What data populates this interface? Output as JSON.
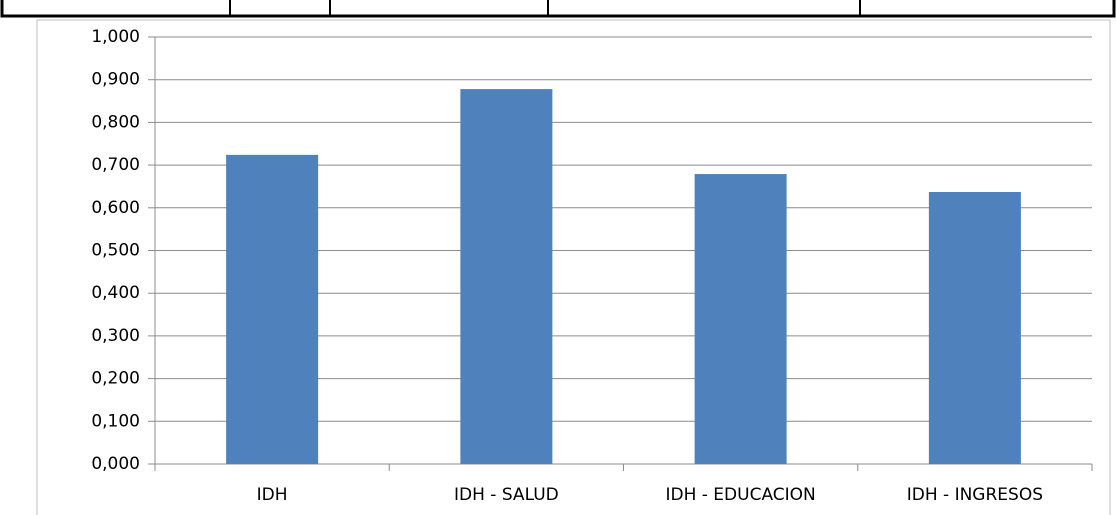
{
  "chart_data": {
    "type": "bar",
    "categories": [
      "IDH",
      "IDH - SALUD",
      "IDH - EDUCACION",
      "IDH - INGRESOS"
    ],
    "values": [
      0.724,
      0.878,
      0.679,
      0.637
    ],
    "color": "#4f81bd",
    "ylim": [
      0,
      1
    ],
    "yticks": [
      {
        "value": 0,
        "label": "0,000"
      },
      {
        "value": 0.1,
        "label": "0,100"
      },
      {
        "value": 0.2,
        "label": "0,200"
      },
      {
        "value": 0.3,
        "label": "0,300"
      },
      {
        "value": 0.4,
        "label": "0,400"
      },
      {
        "value": 0.5,
        "label": "0,500"
      },
      {
        "value": 0.6,
        "label": "0,600"
      },
      {
        "value": 0.7,
        "label": "0,700"
      },
      {
        "value": 0.8,
        "label": "0,800"
      },
      {
        "value": 0.9,
        "label": "0,900"
      },
      {
        "value": 1,
        "label": "1,000"
      }
    ],
    "grid": true
  }
}
